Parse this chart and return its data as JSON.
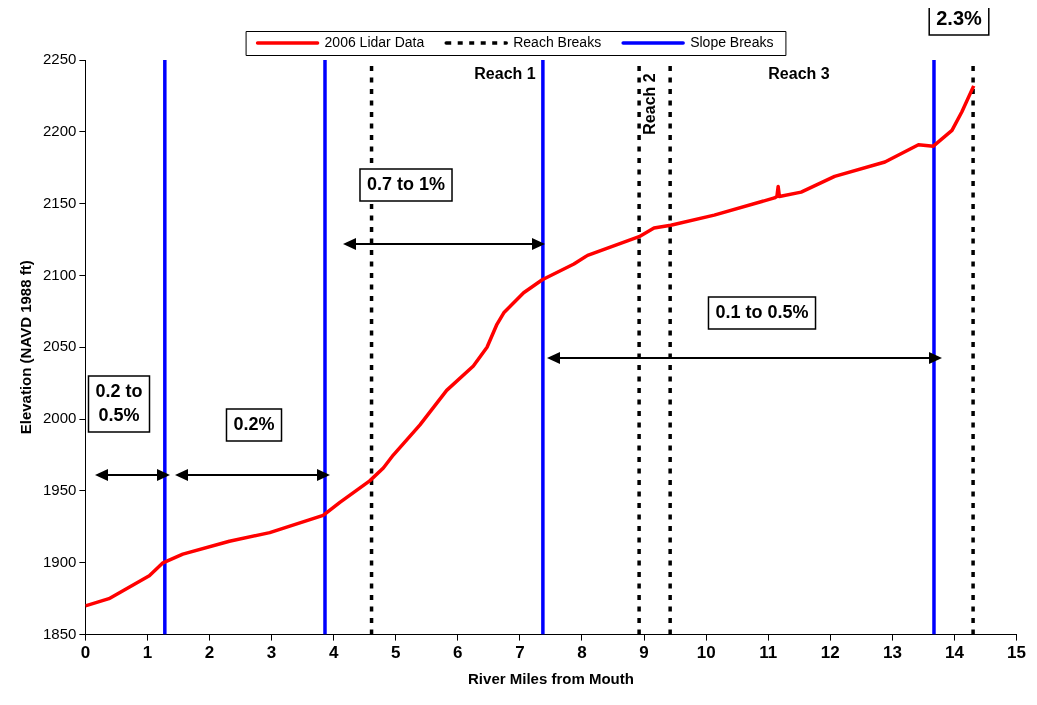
{
  "chart_data": {
    "type": "line",
    "xlabel": "River Miles from Mouth",
    "ylabel": "Elevation (NAVD 1988 ft)",
    "xlim": [
      0,
      15
    ],
    "xticks": [
      0,
      1,
      2,
      3,
      4,
      5,
      6,
      7,
      8,
      9,
      10,
      11,
      12,
      13,
      14,
      15
    ],
    "ylim": [
      1850,
      2250
    ],
    "yticks": [
      1850,
      1900,
      1950,
      2000,
      2050,
      2100,
      2150,
      2200,
      2250
    ],
    "grid": false,
    "legend": "top",
    "marker": "none",
    "series": [
      {
        "name": "2006 Lidar Data",
        "color": "#ff0000",
        "line_style": "solid",
        "x": [
          0,
          0.38,
          1.03,
          1.25,
          1.57,
          2.32,
          2.97,
          3.83,
          4.1,
          4.58,
          4.8,
          4.96,
          5.39,
          5.82,
          6.25,
          6.47,
          6.63,
          6.74,
          7.06,
          7.36,
          7.87,
          8.09,
          8.92,
          9.16,
          9.43,
          10.13,
          11.1,
          11.14,
          11.16,
          11.18,
          11.53,
          12.07,
          12.88,
          13.42,
          13.66,
          13.96,
          14.12,
          14.31
        ],
        "values": [
          1870,
          1875,
          1891,
          1900,
          1906,
          1915,
          1921,
          1933,
          1942,
          1957,
          1966,
          1975,
          1996,
          2020,
          2037,
          2050,
          2066,
          2074,
          2088,
          2097,
          2108,
          2114,
          2127,
          2133,
          2135,
          2142,
          2154,
          2155,
          2162,
          2155,
          2158,
          2169,
          2179,
          2191,
          2190,
          2201,
          2214,
          2232
        ]
      },
      {
        "name": "Reach Breaks",
        "color": "#000000",
        "line_style": "dotted",
        "x": [
          4.61,
          4.61
        ],
        "values": [
          1850,
          2250
        ]
      },
      {
        "color": "#000000",
        "line_style": "dotted",
        "x": [
          8.92,
          8.92
        ],
        "values": [
          1850,
          2250
        ]
      },
      {
        "color": "#000000",
        "line_style": "dotted",
        "x": [
          9.42,
          9.42
        ],
        "values": [
          1850,
          2250
        ]
      },
      {
        "color": "#000000",
        "line_style": "dotted",
        "x": [
          14.3,
          14.3
        ],
        "values": [
          1850,
          2250
        ]
      },
      {
        "name": "Slope Breaks",
        "color": "#0000ff",
        "line_style": "solid",
        "x": [
          1.28,
          1.28
        ],
        "values": [
          1850,
          2250
        ]
      },
      {
        "color": "#0000ff",
        "line_style": "solid",
        "x": [
          3.86,
          3.86
        ],
        "values": [
          1850,
          2250
        ]
      },
      {
        "color": "#0000ff",
        "line_style": "solid",
        "x": [
          7.37,
          7.37
        ],
        "values": [
          1850,
          2250
        ]
      },
      {
        "color": "#0000ff",
        "line_style": "solid",
        "x": [
          13.67,
          13.67
        ],
        "values": [
          1850,
          2250
        ]
      }
    ],
    "annotations": [
      "Reach 1",
      "Reach 2",
      "Reach 3",
      "2.3%",
      "0.2 to 0.5%",
      "0.2%",
      "0.7 to 1%",
      "0.1 to 0.5%"
    ]
  }
}
